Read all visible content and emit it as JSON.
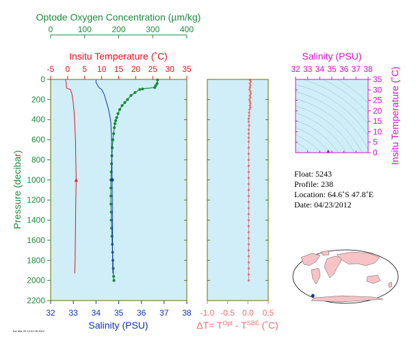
{
  "colors": {
    "oxygen": "#1a8a3a",
    "temperature": "#e8101a",
    "salinity": "#1030b8",
    "delta": "#f06e6e",
    "ts": "#d010c8",
    "panel_bg": "#cfeef8",
    "frame": "#6b6b00",
    "land": "#f7c3c6",
    "ocean": "#ffffff"
  },
  "chart_data": [
    {
      "type": "line",
      "panel": "profile",
      "axes": {
        "oxygen": {
          "label": "Optode Oxygen Concentration (µm/kg)",
          "range": [
            0,
            400
          ],
          "ticks": [
            "0",
            "100",
            "200",
            "300",
            "400"
          ]
        },
        "temperature": {
          "label": "Insitu Temperature (˚C)",
          "range": [
            -5,
            35
          ],
          "ticks": [
            "-5",
            "0",
            "5",
            "10",
            "15",
            "20",
            "25",
            "30",
            "35"
          ]
        },
        "salinity": {
          "label": "Salinity (PSU)",
          "range": [
            32,
            38
          ],
          "ticks": [
            "32",
            "33",
            "34",
            "35",
            "36",
            "37",
            "38"
          ]
        },
        "pressure": {
          "label": "Pressure (decibar)",
          "range": [
            0,
            2200
          ],
          "ticks": [
            "0",
            "200",
            "400",
            "600",
            "800",
            "1000",
            "1200",
            "1400",
            "1600",
            "1800",
            "2000",
            "2200"
          ]
        }
      },
      "series": [
        {
          "key": "oxygen",
          "points": [
            [
              314,
              5
            ],
            [
              313,
              40
            ],
            [
              309,
              60
            ],
            [
              306,
              80
            ],
            [
              270,
              95
            ],
            [
              262,
              100
            ],
            [
              248,
              130
            ],
            [
              236,
              160
            ],
            [
              226,
              200
            ],
            [
              218,
              230
            ],
            [
              210,
              260
            ],
            [
              203,
              300
            ],
            [
              198,
              340
            ],
            [
              194,
              380
            ],
            [
              191,
              410
            ],
            [
              189,
              440
            ],
            [
              187,
              480
            ],
            [
              185,
              540
            ],
            [
              183,
              600
            ],
            [
              181,
              680
            ],
            [
              180,
              760
            ],
            [
              179,
              840
            ],
            [
              178,
              920
            ],
            [
              177,
              1000
            ],
            [
              177,
              1080
            ],
            [
              177,
              1160
            ],
            [
              177,
              1240
            ],
            [
              178,
              1320
            ],
            [
              178,
              1400
            ],
            [
              179,
              1480
            ],
            [
              180,
              1560
            ],
            [
              181,
              1640
            ],
            [
              182,
              1720
            ],
            [
              183,
              1800
            ],
            [
              184,
              1880
            ],
            [
              185,
              1960
            ],
            [
              186,
              2000
            ]
          ]
        },
        {
          "key": "temperature",
          "points": [
            [
              -0.6,
              5
            ],
            [
              -0.4,
              40
            ],
            [
              -0.4,
              70
            ],
            [
              -0.2,
              90
            ],
            [
              0.8,
              100
            ],
            [
              1.3,
              150
            ],
            [
              1.6,
              220
            ],
            [
              1.9,
              320
            ],
            [
              2.1,
              450
            ],
            [
              2.3,
              600
            ],
            [
              2.4,
              800
            ],
            [
              2.5,
              1000
            ],
            [
              2.4,
              1200
            ],
            [
              2.3,
              1500
            ],
            [
              2.2,
              1800
            ],
            [
              2.1,
              1930
            ]
          ],
          "marker": [
            2.5,
            1000
          ]
        },
        {
          "key": "salinity",
          "points": [
            [
              34.0,
              5
            ],
            [
              34.0,
              30
            ],
            [
              34.05,
              50
            ],
            [
              34.08,
              65
            ],
            [
              34.15,
              85
            ],
            [
              34.25,
              100
            ],
            [
              34.36,
              150
            ],
            [
              34.45,
              220
            ],
            [
              34.55,
              300
            ],
            [
              34.6,
              350
            ],
            [
              34.65,
              420
            ],
            [
              34.68,
              550
            ],
            [
              34.7,
              800
            ],
            [
              34.71,
              1000
            ],
            [
              34.72,
              1200
            ],
            [
              34.73,
              1500
            ],
            [
              34.73,
              1800
            ],
            [
              34.74,
              1930
            ]
          ],
          "marker": [
            34.71,
            1000
          ]
        }
      ]
    },
    {
      "type": "scatter",
      "panel": "delta",
      "axes": {
        "x": {
          "label": "ΔT= T",
          "label_sup1": "Opt",
          "label_mid": " - T",
          "label_sup2": "SBE",
          "label_end": " (˚C)",
          "range": [
            -1.0,
            0.5
          ],
          "ticks": [
            "-1.0",
            "-0.5",
            "0.0",
            "0.5"
          ]
        },
        "y": {
          "range": [
            0,
            2200
          ]
        }
      },
      "points": [
        [
          0.05,
          5
        ],
        [
          0.07,
          20
        ],
        [
          0.05,
          40
        ],
        [
          0.06,
          60
        ],
        [
          0.05,
          80
        ],
        [
          0.04,
          100
        ],
        [
          0.06,
          120
        ],
        [
          0.07,
          140
        ],
        [
          0.05,
          160
        ],
        [
          0.06,
          180
        ],
        [
          0.04,
          200
        ],
        [
          0.05,
          220
        ],
        [
          0.06,
          240
        ],
        [
          0.05,
          260
        ],
        [
          0.06,
          280
        ],
        [
          0.04,
          300
        ],
        [
          0.03,
          330
        ],
        [
          0.03,
          360
        ],
        [
          0.02,
          390
        ],
        [
          0.02,
          420
        ],
        [
          0.03,
          460
        ],
        [
          0.02,
          500
        ],
        [
          0.02,
          540
        ],
        [
          0.02,
          580
        ],
        [
          0.02,
          620
        ],
        [
          0.02,
          680
        ],
        [
          0.02,
          740
        ],
        [
          0.02,
          800
        ],
        [
          0.02,
          860
        ],
        [
          0.02,
          920
        ],
        [
          0.02,
          980
        ],
        [
          0.02,
          1040
        ],
        [
          0.02,
          1100
        ],
        [
          0.02,
          1160
        ],
        [
          0.02,
          1220
        ],
        [
          0.02,
          1280
        ],
        [
          0.02,
          1340
        ],
        [
          0.02,
          1400
        ],
        [
          0.02,
          1460
        ],
        [
          0.02,
          1520
        ],
        [
          0.02,
          1580
        ],
        [
          0.02,
          1640
        ],
        [
          0.02,
          1700
        ],
        [
          0.02,
          1760
        ],
        [
          0.02,
          1820
        ],
        [
          0.02,
          1880
        ],
        [
          0.02,
          1940
        ],
        [
          0.02,
          2000
        ]
      ]
    },
    {
      "type": "scatter",
      "panel": "ts",
      "axes": {
        "x": {
          "label": "Salinity (PSU)",
          "range": [
            32,
            38
          ],
          "ticks": [
            "32",
            "33",
            "34",
            "35",
            "36",
            "37",
            "38"
          ]
        },
        "y": {
          "label": "Insitu Temperature (˚C)",
          "range": [
            0,
            35
          ],
          "ticks": [
            "0",
            "5",
            "10",
            "15",
            "20",
            "25",
            "30",
            "35"
          ]
        }
      },
      "points": [
        [
          34.7,
          0.5
        ]
      ]
    }
  ],
  "float_info": {
    "float": "Float:  5243",
    "profile": "Profile:  238",
    "location": "Location:  64.6˚S  47.8˚E",
    "date": "Date:  04/23/2012"
  },
  "map": {
    "location_lon": 47.8,
    "location_lat": -64.6
  },
  "footer": "Tue Mar 20 14:41:28 2012"
}
